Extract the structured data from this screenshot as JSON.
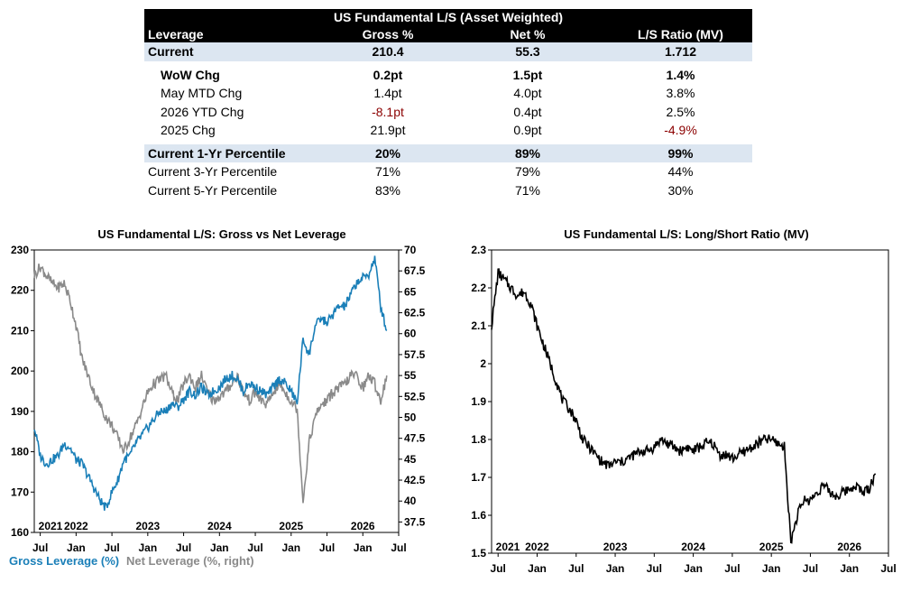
{
  "table": {
    "title": "US Fundamental L/S (Asset Weighted)",
    "headers": [
      "Leverage",
      "Gross %",
      "Net %",
      "L/S Ratio (MV)"
    ],
    "current": {
      "label": "Current",
      "gross": "210.4",
      "net": "55.3",
      "ratio": "1.712"
    },
    "changes": [
      {
        "label": "WoW Chg",
        "gross": "0.2pt",
        "net": "1.5pt",
        "ratio": "1.4%"
      },
      {
        "label": "May MTD Chg",
        "gross": "1.4pt",
        "net": "4.0pt",
        "ratio": "3.8%"
      },
      {
        "label": "2026 YTD Chg",
        "gross": "-8.1pt",
        "net": "0.4pt",
        "ratio": "2.5%"
      },
      {
        "label": "2025 Chg",
        "gross": "21.9pt",
        "net": "0.9pt",
        "ratio": "-4.9%"
      }
    ],
    "percentiles": [
      {
        "label": "Current 1-Yr Percentile",
        "gross": "20%",
        "net": "89%",
        "ratio": "99%"
      },
      {
        "label": "Current 3-Yr Percentile",
        "gross": "71%",
        "net": "79%",
        "ratio": "44%"
      },
      {
        "label": "Current 5-Yr Percentile",
        "gross": "83%",
        "net": "71%",
        "ratio": "30%"
      }
    ],
    "negative_color": "#8b0000",
    "shade_color": "#dce6f1"
  },
  "chart_data": [
    {
      "type": "line",
      "title": "US Fundamental L/S: Gross vs Net Leverage",
      "xlabel": "",
      "ylabel": "",
      "x_month_ticks": [
        "Jul",
        "Jan",
        "Jul",
        "Jan",
        "Jul",
        "Jan",
        "Jul",
        "Jan",
        "Jul",
        "Jan",
        "Jul"
      ],
      "x_year_labels": [
        "2021",
        "2022",
        "2023",
        "2024",
        "2025",
        "2026"
      ],
      "xlim": [
        "2021-06",
        "2026-07"
      ],
      "left_axis": {
        "ylim": [
          160,
          230
        ],
        "ticks": [
          160,
          170,
          180,
          190,
          200,
          210,
          220,
          230
        ]
      },
      "right_axis": {
        "ylim": [
          36.25,
          70
        ],
        "ticks": [
          "37.5",
          "40",
          "42.5",
          "45",
          "47.5",
          "50",
          "52.5",
          "55",
          "57.5",
          "60",
          "62.5",
          "65",
          "67.5",
          "70"
        ]
      },
      "series": [
        {
          "name": "Gross Leverage (%)",
          "axis": "left",
          "color": "#1a7fb8",
          "x": [
            "2021-06",
            "2021-07",
            "2021-08",
            "2021-09",
            "2021-10",
            "2021-11",
            "2021-12",
            "2022-01",
            "2022-02",
            "2022-03",
            "2022-04",
            "2022-05",
            "2022-06",
            "2022-07",
            "2022-08",
            "2022-09",
            "2022-10",
            "2022-11",
            "2022-12",
            "2023-01",
            "2023-02",
            "2023-03",
            "2023-04",
            "2023-05",
            "2023-06",
            "2023-07",
            "2023-08",
            "2023-09",
            "2023-10",
            "2023-11",
            "2023-12",
            "2024-01",
            "2024-02",
            "2024-03",
            "2024-04",
            "2024-05",
            "2024-06",
            "2024-07",
            "2024-08",
            "2024-09",
            "2024-10",
            "2024-11",
            "2024-12",
            "2025-01",
            "2025-02",
            "2025-03",
            "2025-04",
            "2025-05",
            "2025-06",
            "2025-07",
            "2025-08",
            "2025-09",
            "2025-10",
            "2025-11",
            "2025-12",
            "2026-01",
            "2026-02",
            "2026-03",
            "2026-04",
            "2026-05"
          ],
          "values": [
            186,
            179,
            177,
            178,
            179,
            182,
            181,
            178,
            177,
            174,
            171,
            168,
            166,
            170,
            173,
            178,
            179,
            182,
            184,
            186,
            188,
            190,
            190,
            192,
            191,
            193,
            195,
            194,
            196,
            194,
            195,
            196,
            198,
            199,
            198,
            195,
            197,
            196,
            195,
            194,
            196,
            198,
            197,
            195,
            192,
            208,
            204,
            211,
            213,
            212,
            214,
            216,
            216,
            219,
            222,
            223,
            224,
            228,
            216,
            210
          ]
        },
        {
          "name": "Net Leverage (%, right)",
          "axis": "right",
          "color": "#8a8a8a",
          "x": [
            "2021-06",
            "2021-07",
            "2021-08",
            "2021-09",
            "2021-10",
            "2021-11",
            "2021-12",
            "2022-01",
            "2022-02",
            "2022-03",
            "2022-04",
            "2022-05",
            "2022-06",
            "2022-07",
            "2022-08",
            "2022-09",
            "2022-10",
            "2022-11",
            "2022-12",
            "2023-01",
            "2023-02",
            "2023-03",
            "2023-04",
            "2023-05",
            "2023-06",
            "2023-07",
            "2023-08",
            "2023-09",
            "2023-10",
            "2023-11",
            "2023-12",
            "2024-01",
            "2024-02",
            "2024-03",
            "2024-04",
            "2024-05",
            "2024-06",
            "2024-07",
            "2024-08",
            "2024-09",
            "2024-10",
            "2024-11",
            "2024-12",
            "2025-01",
            "2025-02",
            "2025-03",
            "2025-04",
            "2025-05",
            "2025-06",
            "2025-07",
            "2025-08",
            "2025-09",
            "2025-10",
            "2025-11",
            "2025-12",
            "2026-01",
            "2026-02",
            "2026-03",
            "2026-04",
            "2026-05"
          ],
          "values": [
            67,
            68,
            67,
            66,
            65.5,
            66,
            64,
            61,
            57,
            55,
            53,
            51.5,
            50,
            49,
            47.5,
            46,
            47.5,
            49,
            51,
            53,
            54,
            54.5,
            55,
            53,
            52,
            54,
            55,
            53.5,
            55,
            53,
            52,
            52.5,
            53,
            54,
            55,
            53,
            52,
            53,
            52,
            51.5,
            53,
            54,
            53,
            52,
            51,
            40,
            47,
            50,
            51.5,
            52,
            53,
            53.5,
            54,
            55,
            55,
            53.5,
            55,
            54,
            52,
            55
          ]
        }
      ]
    },
    {
      "type": "line",
      "title": "US Fundamental L/S: Long/Short Ratio (MV)",
      "xlabel": "",
      "ylabel": "",
      "x_month_ticks": [
        "Jul",
        "Jan",
        "Jul",
        "Jan",
        "Jul",
        "Jan",
        "Jul",
        "Jan",
        "Jul",
        "Jan",
        "Jul"
      ],
      "x_year_labels": [
        "2021",
        "2022",
        "2023",
        "2024",
        "2025",
        "2026"
      ],
      "xlim": [
        "2021-06",
        "2026-07"
      ],
      "ylim": [
        1.5,
        2.3
      ],
      "yticks": [
        "1.5",
        "1.6",
        "1.7",
        "1.8",
        "1.9",
        "2",
        "2.1",
        "2.2",
        "2.3"
      ],
      "series": [
        {
          "name": "",
          "color": "#000000",
          "x": [
            "2021-06",
            "2021-07",
            "2021-08",
            "2021-09",
            "2021-10",
            "2021-11",
            "2021-12",
            "2022-01",
            "2022-02",
            "2022-03",
            "2022-04",
            "2022-05",
            "2022-06",
            "2022-07",
            "2022-08",
            "2022-09",
            "2022-10",
            "2022-11",
            "2022-12",
            "2023-01",
            "2023-02",
            "2023-03",
            "2023-04",
            "2023-05",
            "2023-06",
            "2023-07",
            "2023-08",
            "2023-09",
            "2023-10",
            "2023-11",
            "2023-12",
            "2024-01",
            "2024-02",
            "2024-03",
            "2024-04",
            "2024-05",
            "2024-06",
            "2024-07",
            "2024-08",
            "2024-09",
            "2024-10",
            "2024-11",
            "2024-12",
            "2025-01",
            "2025-02",
            "2025-03",
            "2025-04",
            "2025-05",
            "2025-06",
            "2025-07",
            "2025-08",
            "2025-09",
            "2025-10",
            "2025-11",
            "2025-12",
            "2026-01",
            "2026-02",
            "2026-03",
            "2026-04",
            "2026-05"
          ],
          "values": [
            2.1,
            2.24,
            2.22,
            2.2,
            2.18,
            2.19,
            2.16,
            2.1,
            2.05,
            2.0,
            1.95,
            1.9,
            1.88,
            1.85,
            1.8,
            1.78,
            1.76,
            1.74,
            1.73,
            1.74,
            1.74,
            1.75,
            1.76,
            1.77,
            1.77,
            1.78,
            1.8,
            1.79,
            1.78,
            1.77,
            1.78,
            1.77,
            1.78,
            1.79,
            1.79,
            1.76,
            1.76,
            1.75,
            1.76,
            1.77,
            1.78,
            1.79,
            1.8,
            1.8,
            1.79,
            1.78,
            1.53,
            1.6,
            1.64,
            1.64,
            1.66,
            1.68,
            1.66,
            1.65,
            1.66,
            1.67,
            1.68,
            1.66,
            1.67,
            1.71
          ]
        }
      ]
    }
  ],
  "legend": {
    "gross": "Gross Leverage (%)",
    "net": "Net Leverage (%, right)"
  }
}
